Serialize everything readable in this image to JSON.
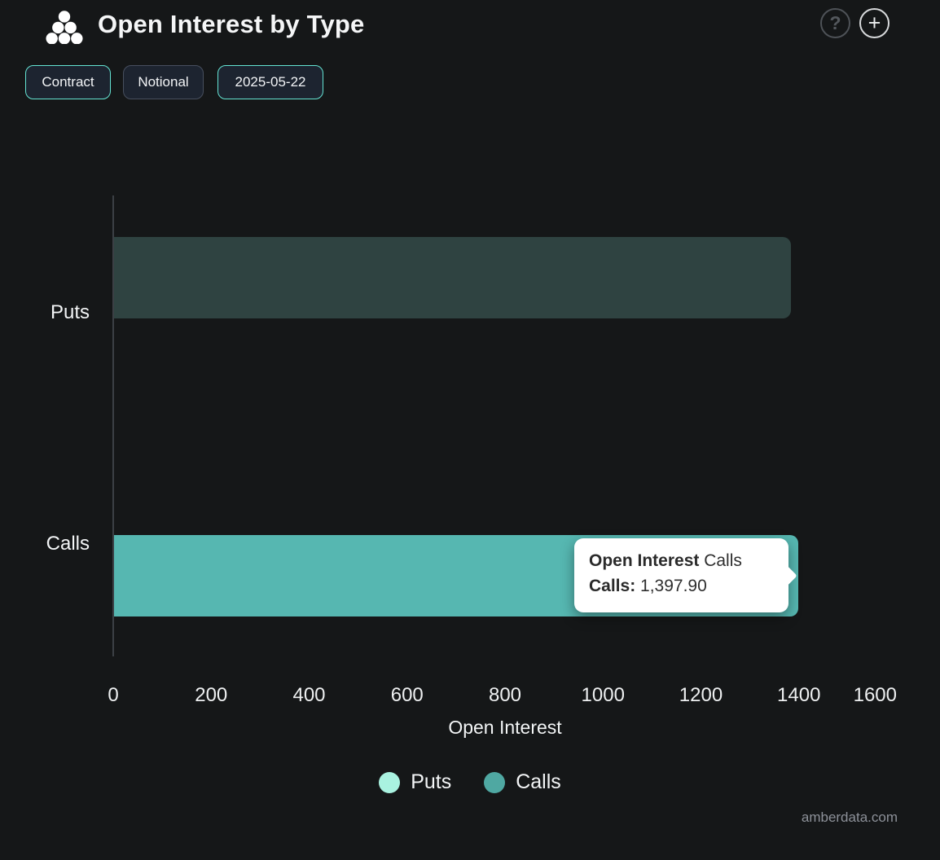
{
  "header": {
    "title": "Open Interest by Type",
    "buttons": [
      {
        "label": "Contract",
        "active": true
      },
      {
        "label": "Notional",
        "active": false
      },
      {
        "label": "2025-05-22",
        "active": true
      }
    ],
    "help_glyph": "?",
    "plus_glyph": "+"
  },
  "chart_data": {
    "type": "bar",
    "orientation": "horizontal",
    "title": "Open Interest by Type",
    "xlabel": "Open Interest",
    "xlim": [
      0,
      1600
    ],
    "x_ticks": [
      0,
      200,
      400,
      600,
      800,
      1000,
      1200,
      1400,
      1600
    ],
    "categories": [
      "Puts",
      "Calls"
    ],
    "series": [
      {
        "name": "Puts",
        "value": 1382.0,
        "bar_color": "#2f4341",
        "legend_color": "#a9f2e0"
      },
      {
        "name": "Calls",
        "value": 1397.9,
        "bar_color": "#56b7b1",
        "legend_color": "#4fa8a2"
      }
    ],
    "grid": false,
    "legend_position": "bottom"
  },
  "tooltip": {
    "title_bold": "Open Interest",
    "title_rest": " Calls",
    "row_label": "Calls:",
    "row_value": " 1,397.90"
  },
  "footer": {
    "watermark": "amberdata.com"
  },
  "colors": {
    "background": "#151718",
    "accent_teal": "#64e3d2",
    "button_bg": "#1d2430",
    "axis_line": "#3c4045",
    "muted_text": "#8d9199"
  }
}
